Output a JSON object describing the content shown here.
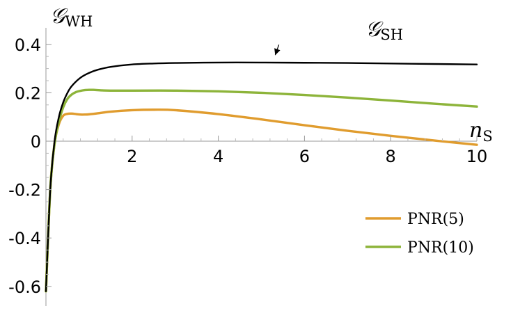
{
  "chart_data": {
    "type": "line",
    "xlabel_main": "n",
    "xlabel_sub": "S",
    "ylabel_main": "𝒢",
    "ylabel_sub": "WH",
    "xlim": [
      0,
      10
    ],
    "ylim": [
      -0.65,
      0.45
    ],
    "x_ticks": [
      2,
      4,
      6,
      8,
      10
    ],
    "x_tick_labels": [
      "2",
      "4",
      "6",
      "8",
      "10"
    ],
    "y_ticks": [
      -0.6,
      -0.4,
      -0.2,
      0,
      0.2,
      0.4
    ],
    "y_tick_labels": [
      "-0.6",
      "-0.4",
      "-0.2",
      "0",
      "0.2",
      "0.4"
    ],
    "grid": false,
    "legend_position": "bottom-right",
    "series": [
      {
        "name": "PNR(5)",
        "color": "#e09c2e",
        "x": [
          0.0,
          0.1,
          0.2,
          0.3,
          0.4,
          0.5,
          0.6,
          0.7,
          0.8,
          0.9,
          1.0,
          1.2,
          1.5,
          2.0,
          2.5,
          3.0,
          4.0,
          5.0,
          6.0,
          7.0,
          8.0,
          9.0,
          10.0
        ],
        "y": [
          -0.62,
          -0.2,
          -0.01,
          0.07,
          0.105,
          0.113,
          0.114,
          0.112,
          0.11,
          0.11,
          0.111,
          0.115,
          0.122,
          0.128,
          0.13,
          0.128,
          0.112,
          0.09,
          0.066,
          0.043,
          0.022,
          0.003,
          -0.015
        ]
      },
      {
        "name": "PNR(10)",
        "color": "#8db43a",
        "x": [
          0.0,
          0.1,
          0.2,
          0.3,
          0.4,
          0.5,
          0.6,
          0.7,
          0.8,
          0.9,
          1.0,
          1.1,
          1.3,
          1.5,
          2.0,
          3.0,
          4.0,
          5.0,
          6.0,
          7.0,
          8.0,
          9.0,
          10.0
        ],
        "y": [
          -0.62,
          -0.2,
          -0.01,
          0.08,
          0.14,
          0.175,
          0.193,
          0.203,
          0.208,
          0.211,
          0.212,
          0.212,
          0.21,
          0.209,
          0.209,
          0.209,
          0.206,
          0.2,
          0.191,
          0.18,
          0.168,
          0.155,
          0.143
        ]
      },
      {
        "name": "𝒢SH",
        "color": "#000000",
        "x": [
          0.0,
          0.1,
          0.2,
          0.3,
          0.4,
          0.5,
          0.6,
          0.8,
          1.0,
          1.2,
          1.5,
          2.0,
          2.5,
          3.0,
          4.0,
          5.0,
          6.0,
          7.0,
          8.0,
          9.0,
          10.0
        ],
        "y": [
          -0.62,
          -0.2,
          0.0,
          0.1,
          0.16,
          0.2,
          0.228,
          0.262,
          0.282,
          0.295,
          0.307,
          0.317,
          0.321,
          0.323,
          0.325,
          0.325,
          0.324,
          0.323,
          0.321,
          0.319,
          0.317
        ]
      }
    ],
    "annotation": {
      "main": "𝒢",
      "sub": "SH",
      "arrow_from": [
        5.6,
        0.37
      ],
      "arrow_to": [
        5.45,
        0.35
      ]
    },
    "legend": [
      {
        "label": "PNR(5)",
        "color": "#e09c2e"
      },
      {
        "label": "PNR(10)",
        "color": "#8db43a"
      }
    ]
  }
}
